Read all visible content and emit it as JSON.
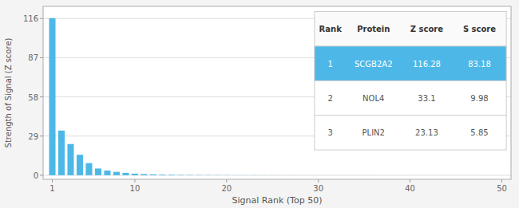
{
  "chart_data": {
    "type": "bar",
    "x_label": "Signal Rank (Top 50)",
    "y_label": "Strength of Signal (Z score)",
    "x": [
      1,
      2,
      3,
      4,
      5,
      6,
      7,
      8,
      9,
      10,
      11,
      12,
      13,
      14,
      15,
      16,
      17,
      18,
      19,
      20,
      21,
      22,
      23,
      24,
      25,
      26,
      27,
      28,
      29,
      30,
      31,
      32,
      33,
      34,
      35,
      36,
      37,
      38,
      39,
      40,
      41,
      42,
      43,
      44,
      45,
      46,
      47,
      48,
      49,
      50
    ],
    "values": [
      116.28,
      33.1,
      23.13,
      15.2,
      9.0,
      5.0,
      3.5,
      2.5,
      1.8,
      1.2,
      0.9,
      0.7,
      0.5,
      0.4,
      0.3,
      0.25,
      0.2,
      0.18,
      0.15,
      0.12,
      0.1,
      0.09,
      0.08,
      0.07,
      0.06,
      0.055,
      0.05,
      0.045,
      0.04,
      0.038,
      0.035,
      0.032,
      0.03,
      0.028,
      0.026,
      0.024,
      0.022,
      0.02,
      0.018,
      0.016,
      0.015,
      0.014,
      0.013,
      0.012,
      0.011,
      0.01,
      0.009,
      0.008,
      0.007,
      0.006
    ],
    "color": "#4db8e8",
    "xlim": [
      0,
      51
    ],
    "xticks": [
      1,
      10,
      20,
      30,
      40,
      50
    ],
    "ylim": [
      -3,
      125
    ],
    "yticks": [
      0,
      29,
      58,
      87,
      116
    ],
    "grid": true,
    "table": {
      "headers": [
        "Rank",
        "Protein",
        "Z score",
        "S score"
      ],
      "rows": [
        [
          "1",
          "SCGB2A2",
          "116.28",
          "83.18"
        ],
        [
          "2",
          "NOL4",
          "33.1",
          "9.98"
        ],
        [
          "3",
          "PLIN2",
          "23.13",
          "5.85"
        ]
      ]
    }
  }
}
